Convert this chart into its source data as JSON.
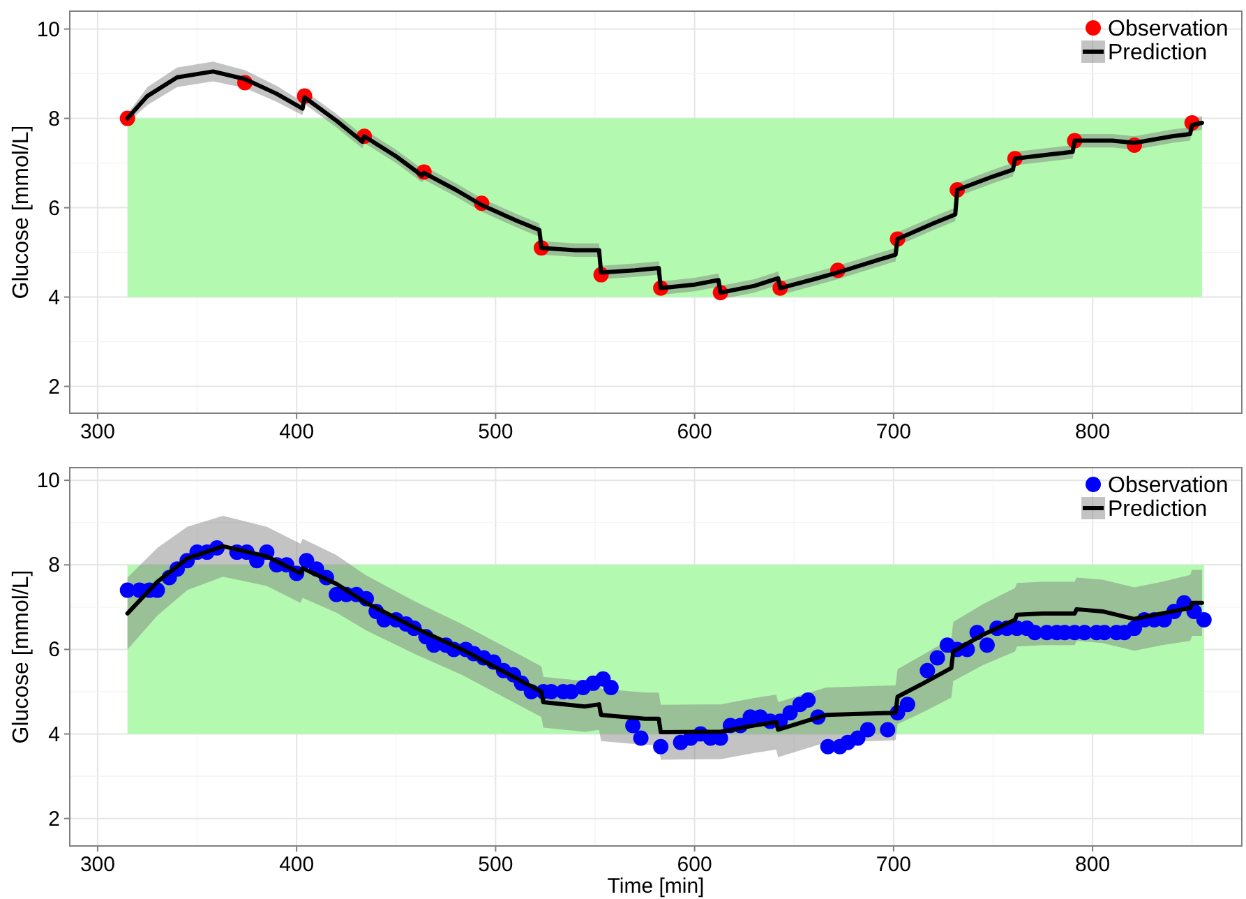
{
  "chart_data": [
    {
      "type": "line",
      "ylabel": "Glucose [mmol/L]",
      "xlim": [
        286,
        875
      ],
      "ylim": [
        1.4,
        10.4
      ],
      "xticks": [
        300,
        {
          "value": 350,
          "label": null
        },
        400,
        {
          "value": 450,
          "label": null
        },
        500,
        {
          "value": 550,
          "label": null
        },
        600,
        {
          "value": 650,
          "label": null
        },
        700,
        {
          "value": 750,
          "label": null
        },
        800,
        {
          "value": 850,
          "label": null
        }
      ],
      "yticks": [
        2,
        {
          "value": 3,
          "label": null
        },
        4,
        {
          "value": 5,
          "label": null
        },
        6,
        {
          "value": 7,
          "label": null
        },
        8,
        {
          "value": 9,
          "label": null
        },
        10
      ],
      "grid": true,
      "legend": "top right",
      "bands": [
        {
          "axis": "y",
          "from": 4,
          "to": 8,
          "color": "#b3f9b0"
        }
      ],
      "series": [
        {
          "name": "Observation",
          "type": "scatter",
          "color": "#ff0000",
          "marker": "circle",
          "x": [
            315,
            374,
            404,
            434,
            464,
            493,
            523,
            553,
            583,
            613,
            643,
            672,
            702,
            732,
            761,
            791,
            821,
            850
          ],
          "values": [
            8.0,
            8.8,
            8.5,
            7.6,
            6.8,
            6.1,
            5.1,
            4.5,
            4.2,
            4.1,
            4.2,
            4.6,
            5.3,
            6.4,
            7.1,
            7.5,
            7.4,
            7.9
          ]
        },
        {
          "name": "Prediction",
          "color": "#000000",
          "line_style": "solid",
          "x": [
            315,
            325,
            340,
            358,
            374,
            390,
            403,
            404,
            420,
            433,
            434,
            450,
            463,
            464,
            480,
            493,
            510,
            522,
            523,
            540,
            552,
            553,
            570,
            582,
            583,
            600,
            612,
            613,
            630,
            642,
            643,
            660,
            672,
            690,
            701,
            702,
            720,
            731,
            732,
            750,
            760,
            761,
            780,
            790,
            791,
            810,
            821,
            840,
            849,
            850,
            855
          ],
          "values": [
            8.0,
            8.5,
            8.92,
            9.05,
            8.88,
            8.55,
            8.22,
            8.47,
            7.95,
            7.48,
            7.6,
            7.15,
            6.72,
            6.78,
            6.4,
            6.06,
            5.72,
            5.5,
            5.1,
            5.05,
            5.05,
            4.55,
            4.6,
            4.65,
            4.2,
            4.28,
            4.38,
            4.1,
            4.25,
            4.42,
            4.2,
            4.4,
            4.55,
            4.8,
            4.95,
            5.3,
            5.65,
            5.85,
            6.4,
            6.7,
            6.85,
            7.1,
            7.2,
            7.25,
            7.5,
            7.5,
            7.45,
            7.6,
            7.65,
            7.85,
            7.9
          ],
          "lower": [
            7.9,
            8.3,
            8.7,
            8.83,
            8.68,
            8.37,
            8.07,
            8.32,
            7.8,
            7.33,
            7.45,
            7.0,
            6.57,
            6.63,
            6.25,
            5.91,
            5.57,
            5.35,
            4.95,
            4.9,
            4.9,
            4.4,
            4.45,
            4.5,
            4.05,
            4.13,
            4.23,
            3.95,
            4.1,
            4.27,
            4.05,
            4.25,
            4.4,
            4.65,
            4.8,
            5.15,
            5.5,
            5.7,
            6.25,
            6.55,
            6.7,
            6.95,
            7.05,
            7.1,
            7.35,
            7.35,
            7.3,
            7.45,
            7.5,
            7.7,
            7.75
          ],
          "upper": [
            8.1,
            8.7,
            9.14,
            9.27,
            9.08,
            8.73,
            8.37,
            8.62,
            8.1,
            7.63,
            7.75,
            7.3,
            6.87,
            6.93,
            6.55,
            6.21,
            5.87,
            5.65,
            5.25,
            5.2,
            5.2,
            4.7,
            4.75,
            4.8,
            4.35,
            4.43,
            4.53,
            4.25,
            4.4,
            4.57,
            4.35,
            4.55,
            4.7,
            4.95,
            5.1,
            5.45,
            5.8,
            6.0,
            6.55,
            6.85,
            7.0,
            7.25,
            7.35,
            7.4,
            7.65,
            7.65,
            7.6,
            7.75,
            7.8,
            8.0,
            8.05
          ]
        }
      ]
    },
    {
      "type": "line",
      "xlabel": "Time [min]",
      "ylabel": "Glucose [mmol/L]",
      "xlim": [
        286,
        875
      ],
      "ylim": [
        1.35,
        10.3
      ],
      "xticks": [
        300,
        {
          "value": 350,
          "label": null
        },
        400,
        {
          "value": 450,
          "label": null
        },
        500,
        {
          "value": 550,
          "label": null
        },
        600,
        {
          "value": 650,
          "label": null
        },
        700,
        {
          "value": 750,
          "label": null
        },
        800,
        {
          "value": 850,
          "label": null
        }
      ],
      "yticks": [
        2,
        {
          "value": 3,
          "label": null
        },
        4,
        {
          "value": 5,
          "label": null
        },
        6,
        {
          "value": 7,
          "label": null
        },
        8,
        {
          "value": 9,
          "label": null
        },
        10
      ],
      "grid": true,
      "legend": "top right",
      "bands": [
        {
          "axis": "y",
          "from": 4,
          "to": 8,
          "color": "#b3f9b0"
        }
      ],
      "series": [
        {
          "name": "Observation",
          "type": "scatter",
          "color": "#0000ff",
          "marker": "circle",
          "x": [
            315,
            321,
            326,
            330,
            336,
            340,
            345,
            350,
            355,
            360,
            370,
            375,
            380,
            385,
            390,
            395,
            400,
            405,
            410,
            415,
            420,
            425,
            430,
            435,
            440,
            444,
            450,
            455,
            459,
            465,
            469,
            475,
            479,
            485,
            489,
            494,
            499,
            504,
            509,
            513,
            518,
            524,
            528,
            534,
            538,
            544,
            549,
            554,
            558,
            569,
            573,
            583,
            593,
            598,
            603,
            608,
            613,
            618,
            623,
            628,
            633,
            638,
            643,
            648,
            653,
            657,
            662,
            667,
            673,
            677,
            682,
            687,
            697,
            702,
            707,
            717,
            722,
            727,
            732,
            737,
            742,
            747,
            752,
            757,
            762,
            767,
            771,
            777,
            782,
            786,
            791,
            796,
            802,
            806,
            812,
            816,
            821,
            826,
            831,
            836,
            841,
            846,
            851,
            856
          ],
          "values": [
            7.4,
            7.4,
            7.4,
            7.4,
            7.7,
            7.9,
            8.1,
            8.3,
            8.3,
            8.4,
            8.3,
            8.3,
            8.1,
            8.3,
            8.0,
            8.0,
            7.8,
            8.1,
            7.9,
            7.7,
            7.3,
            7.3,
            7.3,
            7.2,
            6.9,
            6.7,
            6.7,
            6.6,
            6.5,
            6.3,
            6.1,
            6.1,
            6.0,
            6.0,
            5.9,
            5.8,
            5.7,
            5.5,
            5.4,
            5.2,
            5.0,
            5.0,
            5.0,
            5.0,
            5.0,
            5.1,
            5.2,
            5.3,
            5.1,
            4.2,
            3.9,
            3.7,
            3.8,
            3.9,
            4.0,
            3.9,
            3.9,
            4.2,
            4.2,
            4.4,
            4.4,
            4.3,
            4.3,
            4.5,
            4.7,
            4.8,
            4.4,
            3.7,
            3.7,
            3.8,
            3.9,
            4.1,
            4.1,
            4.5,
            4.7,
            5.5,
            5.8,
            6.1,
            6.0,
            6.0,
            6.4,
            6.1,
            6.5,
            6.5,
            6.5,
            6.5,
            6.4,
            6.4,
            6.4,
            6.4,
            6.4,
            6.4,
            6.4,
            6.4,
            6.4,
            6.4,
            6.5,
            6.7,
            6.7,
            6.7,
            6.9,
            7.1,
            6.9,
            6.7
          ]
        },
        {
          "name": "Prediction",
          "color": "#000000",
          "line_style": "solid",
          "x": [
            315,
            330,
            345,
            363,
            385,
            402,
            403,
            420,
            435,
            460,
            483,
            503,
            523,
            524,
            545,
            552,
            553,
            575,
            582,
            583,
            605,
            613,
            630,
            641,
            642,
            666,
            701,
            702,
            715,
            729,
            730,
            745,
            761,
            762,
            775,
            791,
            792,
            805,
            821,
            835,
            849,
            850,
            855
          ],
          "values": [
            6.85,
            7.6,
            8.15,
            8.44,
            8.2,
            7.8,
            7.92,
            7.55,
            7.1,
            6.5,
            6.0,
            5.5,
            5.0,
            4.75,
            4.65,
            4.7,
            4.45,
            4.36,
            4.36,
            4.04,
            4.05,
            4.05,
            4.2,
            4.28,
            4.1,
            4.45,
            4.5,
            4.88,
            5.2,
            5.56,
            5.95,
            6.35,
            6.7,
            6.82,
            6.85,
            6.85,
            6.95,
            6.9,
            6.72,
            6.85,
            6.98,
            7.1,
            7.1
          ],
          "lower": [
            6.0,
            6.8,
            7.4,
            7.72,
            7.5,
            7.1,
            7.22,
            6.87,
            6.45,
            5.88,
            5.4,
            4.9,
            4.4,
            4.15,
            4.05,
            4.1,
            3.83,
            3.74,
            3.74,
            3.39,
            3.4,
            3.4,
            3.55,
            3.63,
            3.45,
            3.8,
            3.85,
            4.23,
            4.52,
            4.86,
            5.25,
            5.63,
            5.95,
            6.07,
            6.1,
            6.1,
            6.2,
            6.15,
            5.97,
            6.1,
            6.2,
            6.32,
            6.32
          ],
          "upper": [
            7.7,
            8.4,
            8.9,
            9.16,
            8.9,
            8.5,
            8.62,
            8.23,
            7.75,
            7.12,
            6.6,
            6.1,
            5.6,
            5.35,
            5.25,
            5.3,
            5.07,
            4.98,
            4.98,
            4.69,
            4.7,
            4.7,
            4.85,
            4.93,
            4.75,
            5.1,
            5.15,
            5.53,
            5.88,
            6.26,
            6.65,
            7.07,
            7.45,
            7.57,
            7.6,
            7.6,
            7.7,
            7.65,
            7.47,
            7.6,
            7.76,
            7.88,
            7.88
          ]
        }
      ]
    }
  ]
}
